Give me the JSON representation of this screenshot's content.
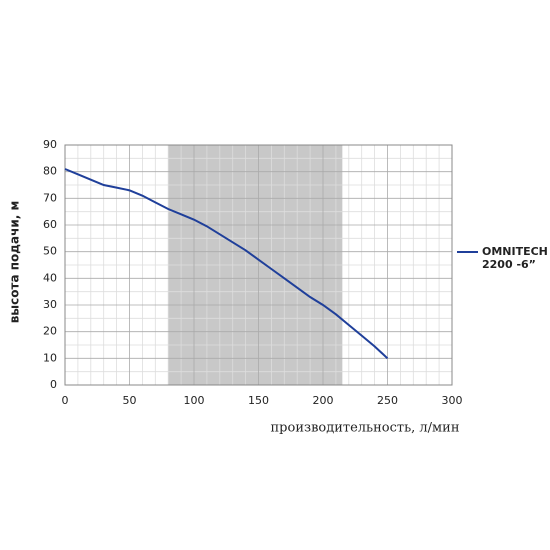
{
  "chart_data": {
    "type": "line",
    "x_label": "производительность, л/мин",
    "y_label": "высота подачи, м",
    "x": [
      0,
      10,
      20,
      30,
      40,
      50,
      60,
      70,
      80,
      90,
      100,
      110,
      120,
      130,
      140,
      150,
      160,
      170,
      180,
      190,
      200,
      210,
      220,
      230,
      240,
      250
    ],
    "series": [
      {
        "name": "OMNITECH 2200 -6”",
        "color": "#1f3f9a",
        "values": [
          81,
          79,
          77,
          75,
          74,
          73,
          71,
          68.5,
          66,
          64,
          62,
          59.5,
          56.5,
          53.5,
          50.5,
          47,
          43.5,
          40,
          36.5,
          33,
          30,
          26.5,
          22.5,
          18.5,
          14.5,
          10
        ]
      }
    ],
    "xlim": [
      0,
      300
    ],
    "xticks": [
      0,
      50,
      100,
      150,
      200,
      250,
      300
    ],
    "ylim": [
      0,
      90
    ],
    "yticks": [
      0,
      10,
      20,
      30,
      40,
      50,
      60,
      70,
      80,
      90
    ],
    "shaded_range": [
      80,
      215
    ],
    "grid": true,
    "legend": "right"
  }
}
